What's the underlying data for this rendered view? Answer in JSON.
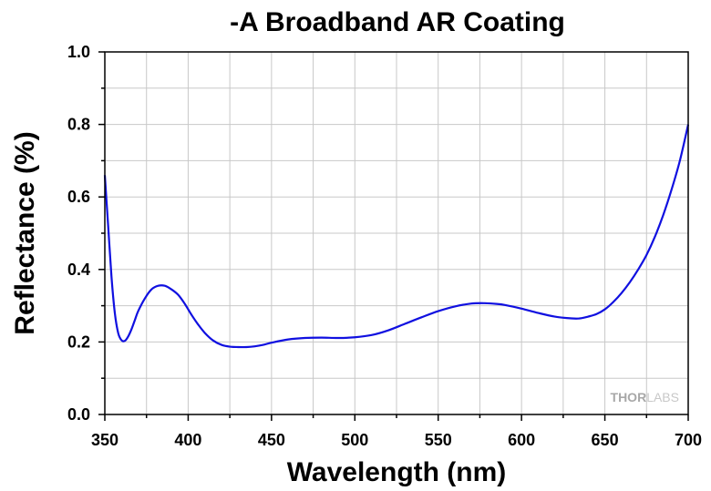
{
  "chart_data": {
    "type": "line",
    "title": "-A Broadband AR Coating",
    "xlabel": "Wavelength (nm)",
    "ylabel": "Reflectance (%)",
    "xlim": [
      350,
      700
    ],
    "ylim": [
      0.0,
      1.0
    ],
    "xticks": [
      350,
      400,
      450,
      500,
      550,
      600,
      650,
      700
    ],
    "yticks": [
      0.0,
      0.2,
      0.4,
      0.6,
      0.8,
      1.0
    ],
    "ytick_labels": [
      "0.0",
      "0.2",
      "0.4",
      "0.6",
      "0.8",
      "1.0"
    ],
    "grid": true,
    "line_color": "#1010e0",
    "series": [
      {
        "x": [
          350,
          352,
          354,
          356,
          358,
          360,
          362,
          364,
          366,
          368,
          370,
          374,
          378,
          382,
          386,
          390,
          394,
          398,
          402,
          406,
          410,
          415,
          420,
          425,
          430,
          435,
          440,
          445,
          450,
          460,
          470,
          480,
          490,
          500,
          510,
          520,
          530,
          540,
          550,
          560,
          570,
          578,
          585,
          590,
          600,
          610,
          620,
          630,
          635,
          640,
          645,
          650,
          655,
          660,
          665,
          670,
          675,
          680,
          685,
          690,
          695,
          700
        ],
        "y": [
          0.66,
          0.52,
          0.38,
          0.28,
          0.225,
          0.205,
          0.203,
          0.215,
          0.235,
          0.26,
          0.285,
          0.32,
          0.345,
          0.355,
          0.355,
          0.345,
          0.33,
          0.305,
          0.275,
          0.248,
          0.225,
          0.204,
          0.192,
          0.187,
          0.186,
          0.186,
          0.188,
          0.192,
          0.198,
          0.207,
          0.211,
          0.212,
          0.211,
          0.213,
          0.219,
          0.232,
          0.25,
          0.268,
          0.285,
          0.298,
          0.306,
          0.307,
          0.305,
          0.302,
          0.292,
          0.28,
          0.27,
          0.265,
          0.265,
          0.27,
          0.277,
          0.29,
          0.31,
          0.335,
          0.365,
          0.4,
          0.44,
          0.49,
          0.55,
          0.62,
          0.7,
          0.8
        ]
      }
    ],
    "watermark": [
      "THOR",
      "LABS"
    ]
  }
}
